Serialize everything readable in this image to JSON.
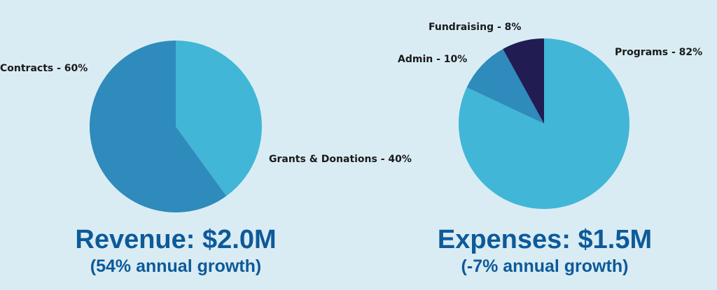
{
  "chart_data": [
    {
      "type": "pie",
      "title": "Revenue: $2.0M",
      "subtitle": "(54% annual growth)",
      "slices": [
        {
          "label": "Grants & Donations - 40%",
          "name": "Grants & Donations",
          "value": 40,
          "color": "#41b6d6"
        },
        {
          "label": "Contracts - 60%",
          "name": "Contracts",
          "value": 60,
          "color": "#2e8bbb"
        }
      ],
      "start": "top",
      "direction": "clockwise"
    },
    {
      "type": "pie",
      "title": "Expenses: $1.5M",
      "subtitle": "(-7% annual growth)",
      "slices": [
        {
          "label": "Programs - 82%",
          "name": "Programs",
          "value": 82,
          "color": "#41b6d6"
        },
        {
          "label": "Admin - 10%",
          "name": "Admin",
          "value": 10,
          "color": "#2e8bbb"
        },
        {
          "label": "Fundraising - 8%",
          "name": "Fundraising",
          "value": 8,
          "color": "#211c52"
        }
      ],
      "start": "top",
      "direction": "clockwise"
    }
  ],
  "colors": {
    "background": "#d9ecf4",
    "title": "#0d5a99"
  }
}
